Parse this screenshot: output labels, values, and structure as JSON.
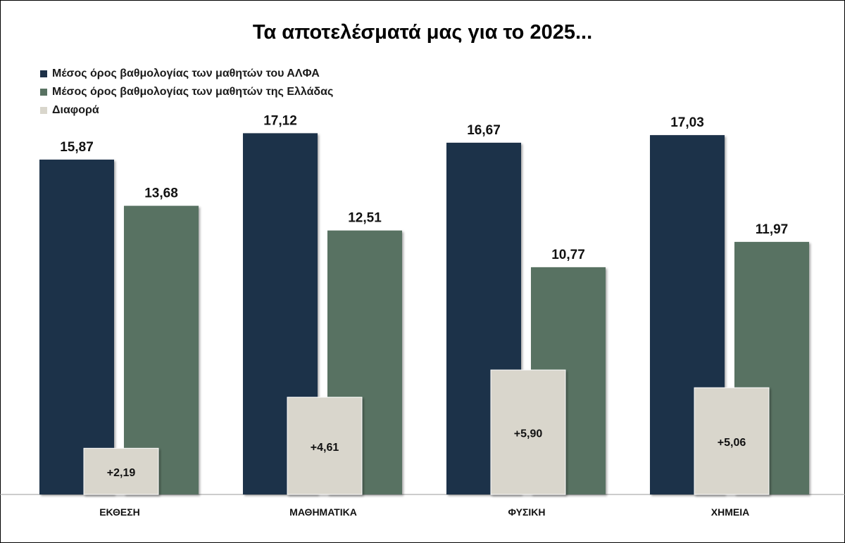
{
  "chart_data": {
    "type": "bar",
    "title": "Τα αποτελέσματά μας για το 2025...",
    "categories": [
      "ΕΚΘΕΣΗ",
      "ΜΑΘΗΜΑΤΙΚΑ",
      "ΦΥΣΙΚΗ",
      "ΧΗΜΕΙΑ"
    ],
    "series": [
      {
        "name": "Μέσος όρος βαθμολογίας των μαθητών του ΑΛΦΑ",
        "color": "#1e3148",
        "values": [
          15.87,
          17.12,
          16.67,
          17.03
        ],
        "labels": [
          "15,87",
          "17,12",
          "16,67",
          "17,03"
        ]
      },
      {
        "name": "Μέσος όρος βαθμολογίας των μαθητών της Ελλάδας",
        "color": "#587262",
        "values": [
          13.68,
          12.51,
          10.77,
          11.97
        ],
        "labels": [
          "13,68",
          "12,51",
          "10,77",
          "11,97"
        ]
      },
      {
        "name": "Διαφορά",
        "color": "#d9d6cc",
        "values": [
          2.19,
          4.61,
          5.9,
          5.06
        ],
        "labels": [
          "+2,19",
          "+4,61",
          "+5,90",
          "+5,06"
        ]
      }
    ],
    "xlabel": "",
    "ylabel": "",
    "ylim": [
      0,
      20
    ],
    "grid": false,
    "legend_position": "top-left"
  }
}
